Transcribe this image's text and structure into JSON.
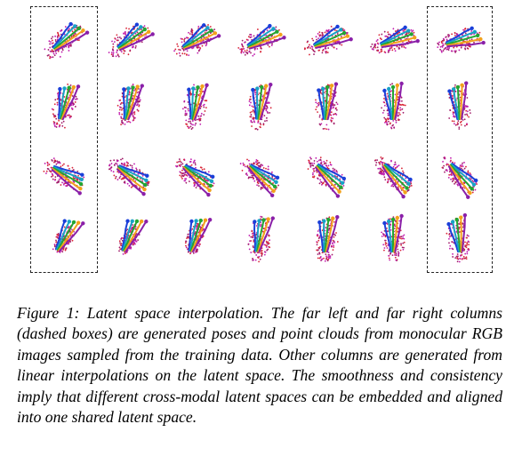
{
  "figure": {
    "rows": 4,
    "columns": 7,
    "boxed_columns": [
      "first",
      "last"
    ],
    "point_colors": [
      "#c21fb0",
      "#a11c6a",
      "#d9283a",
      "#1a3fd9",
      "#18a2c7",
      "#23a632",
      "#f2a21c",
      "#8a1fa8",
      "#0a1f9e"
    ]
  },
  "caption": {
    "label": "Figure 1:",
    "text": "Latent space interpolation. The far left and far right columns (dashed boxes) are generated poses and point clouds from monocular RGB images sampled from the training data. Other columns are generated from linear interpolations on the latent space. The smoothness and consistency imply that different cross-modal latent spaces can be embedded and aligned into one shared latent space."
  }
}
